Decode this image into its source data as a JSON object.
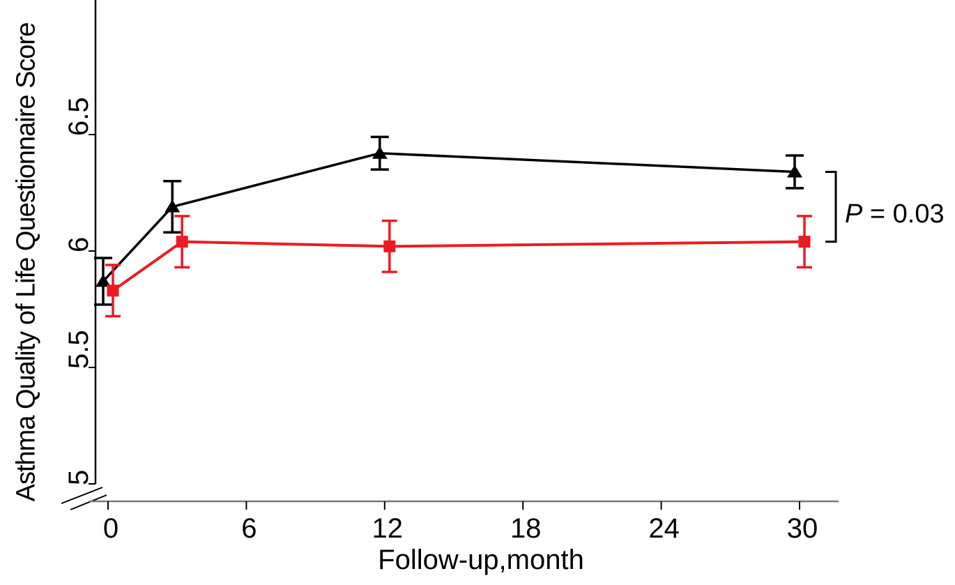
{
  "chart_data": {
    "type": "line",
    "title": "",
    "xlabel": "Follow-up,month",
    "ylabel": "Asthma Quality of Life Questionnaire Score",
    "x": [
      0,
      3,
      12,
      30
    ],
    "series": [
      {
        "name": "black-triangle-series",
        "marker": "triangle",
        "color": "#000000",
        "values": [
          5.87,
          6.19,
          6.42,
          6.34
        ],
        "errors": [
          0.1,
          0.11,
          0.07,
          0.07
        ]
      },
      {
        "name": "red-square-series",
        "marker": "square",
        "color": "#ec1b23",
        "values": [
          5.83,
          6.04,
          6.02,
          6.04
        ],
        "errors": [
          0.11,
          0.11,
          0.11,
          0.11
        ]
      }
    ],
    "x_ticks": [
      0,
      6,
      12,
      18,
      24,
      30
    ],
    "y_ticks": [
      5,
      5.5,
      6,
      6.5
    ],
    "xlim": [
      0,
      30
    ],
    "ylim": [
      5,
      7.05
    ],
    "y_axis_break": true,
    "grid": false,
    "legend": "none",
    "annotation": {
      "p_symbol": "P",
      "p_rest": " = 0.03",
      "full_text": "P = 0.03"
    },
    "axis_color": "#787878",
    "tick_color": "#000000"
  }
}
